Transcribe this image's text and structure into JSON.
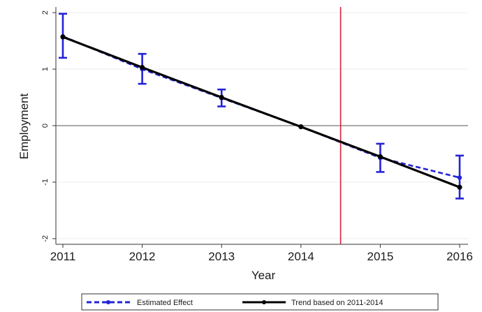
{
  "chart_data": {
    "type": "line",
    "title": "",
    "xlabel": "Year",
    "ylabel": "Employment",
    "x": [
      2011,
      2012,
      2013,
      2014,
      2015,
      2016
    ],
    "x_tick_labels": [
      "2011",
      "2012",
      "2013",
      "2014",
      "2015",
      "2016"
    ],
    "y_ticks": [
      -2,
      -1,
      0,
      1,
      2
    ],
    "y_tick_labels": [
      "-2",
      "-1",
      "0",
      "1",
      "2"
    ],
    "xlim": [
      2011,
      2016
    ],
    "ylim": [
      -2.1,
      2.1
    ],
    "grid": true,
    "zero_line": 0,
    "vertical_reference_line": {
      "x": 2014.5,
      "color": "#d3213f"
    },
    "legend_position": "bottom",
    "series": [
      {
        "name": "Estimated Effect",
        "style": "dashed",
        "color": "#2323d6",
        "values": [
          1.58,
          1.0,
          0.49,
          -0.02,
          -0.57,
          -0.92
        ],
        "ci_low": [
          1.2,
          0.74,
          0.34,
          -0.02,
          -0.82,
          -1.29
        ],
        "ci_high": [
          1.98,
          1.27,
          0.64,
          -0.02,
          -0.32,
          -0.53
        ]
      },
      {
        "name": "Trend based on 2011-2014",
        "style": "solid",
        "color": "#000000",
        "values": [
          1.57,
          1.03,
          0.5,
          -0.02,
          -0.55,
          -1.09
        ]
      }
    ]
  }
}
